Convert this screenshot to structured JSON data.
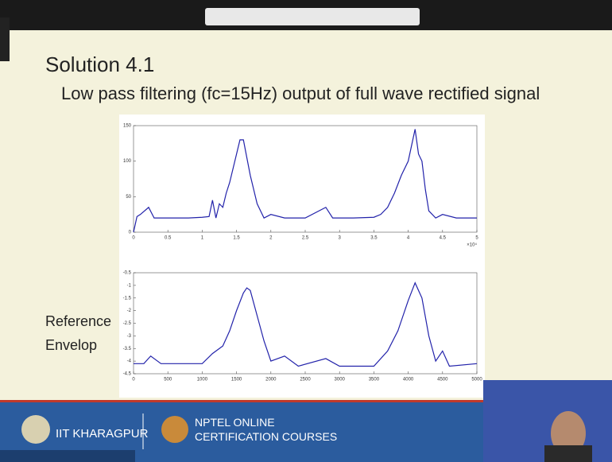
{
  "slide": {
    "title": "Solution 4.1",
    "subtitle": "Low pass filtering (fc=15Hz) output of full wave rectified signal",
    "side_label": [
      "Reference",
      "Envelop"
    ],
    "footer": {
      "institute": "IIT KHARAGPUR",
      "course_line1": "NPTEL ONLINE",
      "course_line2": "CERTIFICATION COURSES"
    }
  },
  "chart_data": [
    {
      "type": "line",
      "color": "#2222aa",
      "x_scale_label": "×10⁴",
      "x": [
        0,
        500,
        1000,
        2200,
        3000,
        5000,
        8000,
        10000,
        11000,
        11500,
        12000,
        12500,
        13000,
        13500,
        14000,
        14500,
        15000,
        15500,
        16000,
        16500,
        17000,
        17500,
        18000,
        18500,
        19000,
        20000,
        22000,
        25000,
        28000,
        29000,
        32000,
        35000,
        36000,
        37000,
        38000,
        39000,
        40000,
        41000,
        41500,
        42000,
        42500,
        43000,
        44000,
        45000,
        47000,
        50000
      ],
      "values": [
        0,
        22,
        25,
        35,
        20,
        20,
        20,
        21,
        22,
        45,
        20,
        40,
        35,
        55,
        70,
        90,
        110,
        130,
        130,
        105,
        80,
        60,
        40,
        30,
        20,
        25,
        20,
        20,
        35,
        20,
        20,
        21,
        25,
        35,
        55,
        80,
        100,
        145,
        110,
        100,
        60,
        30,
        20,
        25,
        20,
        20
      ],
      "xlim": [
        0,
        50000
      ],
      "xticks": [
        {
          "value": 0,
          "label": "0"
        },
        {
          "value": 5000,
          "label": "0.5"
        },
        {
          "value": 10000,
          "label": "1"
        },
        {
          "value": 15000,
          "label": "1.5"
        },
        {
          "value": 20000,
          "label": "2"
        },
        {
          "value": 25000,
          "label": "2.5"
        },
        {
          "value": 30000,
          "label": "3"
        },
        {
          "value": 35000,
          "label": "3.5"
        },
        {
          "value": 40000,
          "label": "4"
        },
        {
          "value": 45000,
          "label": "4.5"
        },
        {
          "value": 50000,
          "label": "5"
        }
      ],
      "ylim": [
        0,
        150
      ],
      "yticks": [
        0,
        50,
        100,
        150
      ]
    },
    {
      "type": "line",
      "color": "#2222aa",
      "x": [
        0,
        150,
        250,
        400,
        1000,
        1150,
        1300,
        1400,
        1500,
        1600,
        1650,
        1700,
        1800,
        1900,
        2000,
        2200,
        2400,
        2800,
        3000,
        3500,
        3700,
        3850,
        4000,
        4100,
        4200,
        4300,
        4400,
        4500,
        4600,
        5000
      ],
      "values": [
        -4.1,
        -4.1,
        -3.8,
        -4.1,
        -4.1,
        -3.7,
        -3.4,
        -2.8,
        -2.0,
        -1.3,
        -1.1,
        -1.2,
        -2.2,
        -3.2,
        -4.0,
        -3.8,
        -4.2,
        -3.9,
        -4.2,
        -4.2,
        -3.6,
        -2.8,
        -1.6,
        -0.9,
        -1.5,
        -3.0,
        -4.0,
        -3.6,
        -4.2,
        -4.1
      ],
      "xlim": [
        0,
        5000
      ],
      "xticks": [
        0,
        500,
        1000,
        1500,
        2000,
        2500,
        3000,
        3500,
        4000,
        4500,
        5000
      ],
      "ylim": [
        -4.5,
        -0.5
      ],
      "yticks": [
        -4.5,
        -4,
        -3.5,
        -3,
        -2.5,
        -2,
        -1.5,
        -1,
        -0.5
      ]
    }
  ]
}
